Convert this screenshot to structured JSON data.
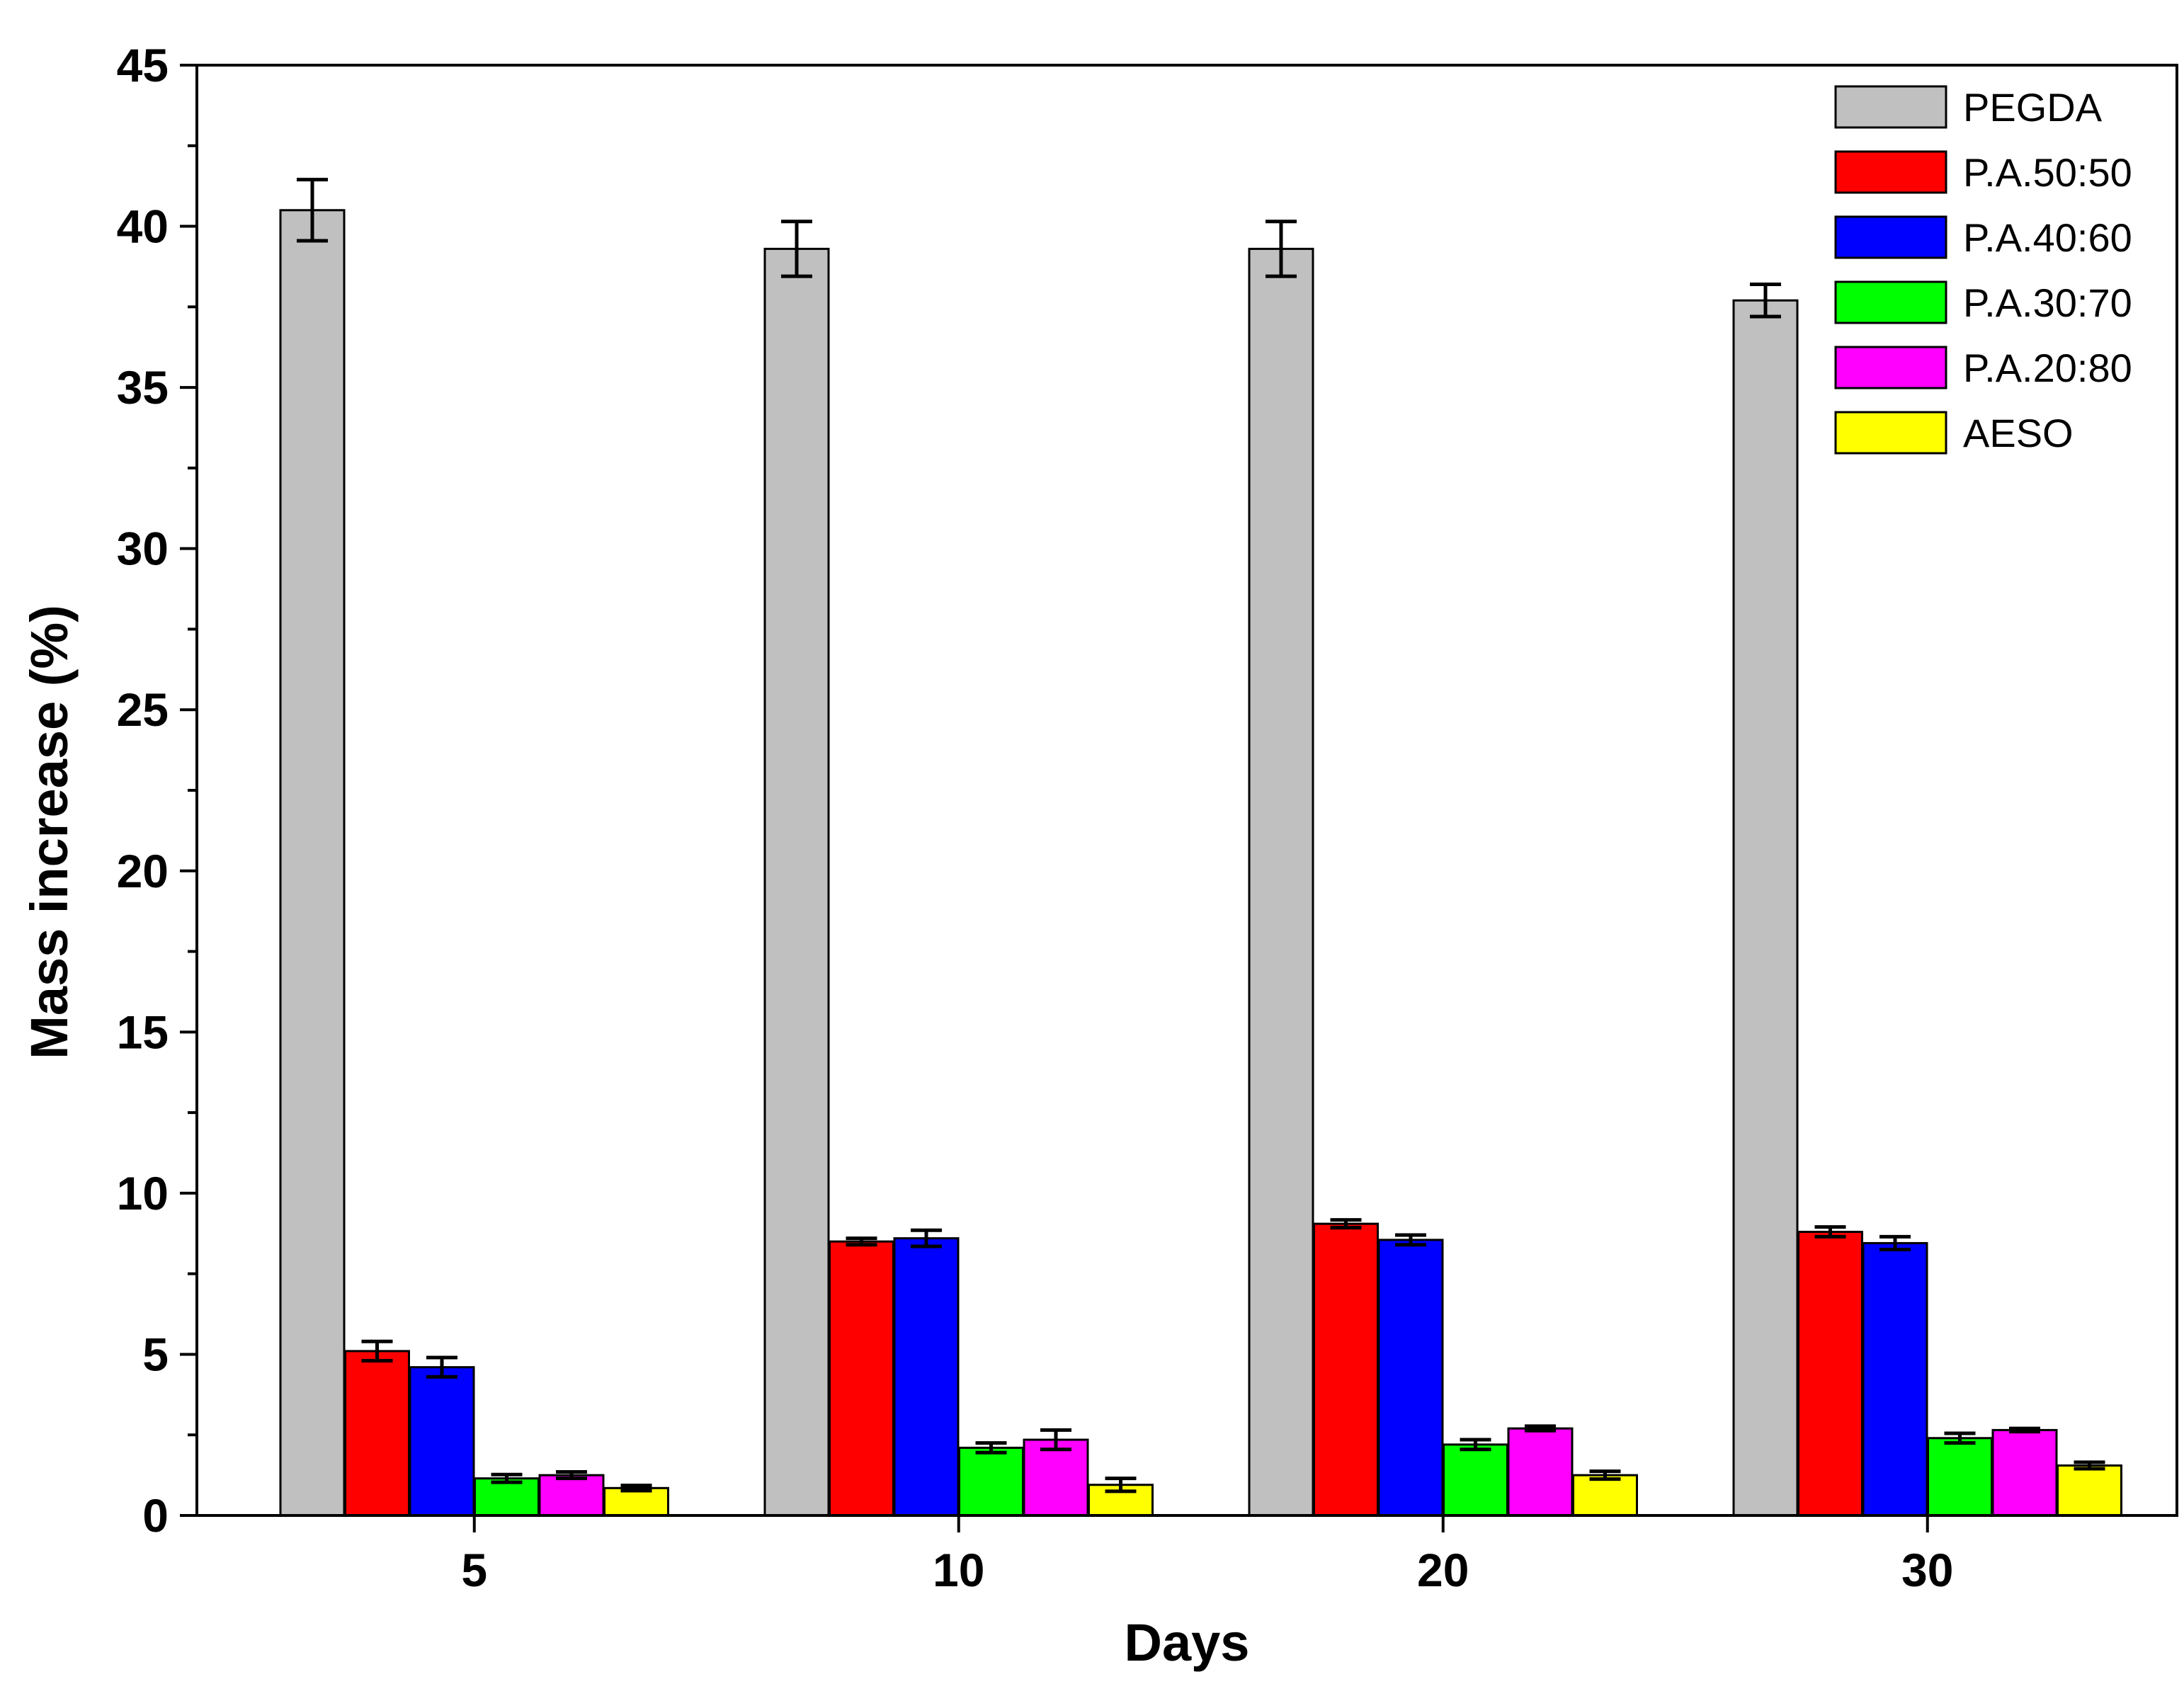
{
  "chart_data": {
    "type": "bar",
    "title": "",
    "xlabel": "Days",
    "ylabel": "Mass increase (%)",
    "categories": [
      "5",
      "10",
      "20",
      "30"
    ],
    "ylim": [
      0,
      45
    ],
    "yticks": [
      0,
      5,
      10,
      15,
      20,
      25,
      30,
      35,
      40,
      45
    ],
    "ytick_labels": [
      "0",
      "5",
      "10",
      "15",
      "20",
      "25",
      "30",
      "35",
      "40",
      "45"
    ],
    "grid": false,
    "legend_position": "top-right",
    "series": [
      {
        "name": "PEGDA",
        "color": "#c0c0c0",
        "values": [
          40.5,
          39.3,
          39.3,
          37.7
        ],
        "errors": [
          0.95,
          0.85,
          0.85,
          0.5
        ]
      },
      {
        "name": "P.A.50:50",
        "color": "#ff0000",
        "values": [
          5.1,
          8.5,
          9.05,
          8.8
        ],
        "errors": [
          0.3,
          0.1,
          0.12,
          0.15
        ]
      },
      {
        "name": "P.A.40:60",
        "color": "#0000ff",
        "values": [
          4.6,
          8.6,
          8.55,
          8.45
        ],
        "errors": [
          0.3,
          0.25,
          0.15,
          0.2
        ]
      },
      {
        "name": "P.A.30:70",
        "color": "#00ff00",
        "values": [
          1.15,
          2.1,
          2.2,
          2.4
        ],
        "errors": [
          0.12,
          0.15,
          0.15,
          0.15
        ]
      },
      {
        "name": "P.A.20:80",
        "color": "#ff00ff",
        "values": [
          1.25,
          2.35,
          2.7,
          2.65
        ],
        "errors": [
          0.1,
          0.3,
          0.07,
          0.05
        ]
      },
      {
        "name": "AESO",
        "color": "#ffff00",
        "values": [
          0.85,
          0.95,
          1.25,
          1.55
        ],
        "errors": [
          0.08,
          0.2,
          0.12,
          0.1
        ]
      }
    ]
  }
}
